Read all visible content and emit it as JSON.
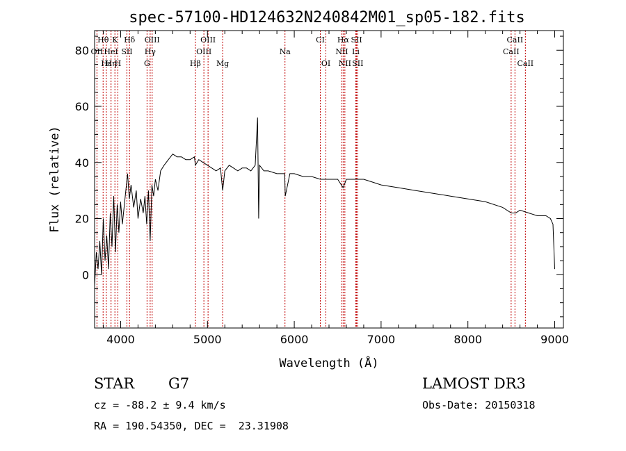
{
  "chart_data": {
    "type": "line",
    "title": "spec-57100-HD124632N240842M01_sp05-182.fits",
    "xlabel": "Wavelength (Å)",
    "ylabel": "Flux (relative)",
    "xlim": [
      3700,
      9100
    ],
    "ylim": [
      -19,
      87
    ],
    "x_ticks": [
      4000,
      5000,
      6000,
      7000,
      8000,
      9000
    ],
    "y_ticks": [
      0,
      20,
      40,
      60,
      80
    ],
    "series": [
      {
        "name": "flux",
        "x": [
          3700,
          3720,
          3740,
          3760,
          3780,
          3800,
          3820,
          3840,
          3860,
          3880,
          3900,
          3920,
          3940,
          3960,
          3980,
          4000,
          4020,
          4040,
          4060,
          4080,
          4100,
          4120,
          4150,
          4180,
          4200,
          4230,
          4260,
          4280,
          4300,
          4320,
          4340,
          4360,
          4380,
          4400,
          4430,
          4460,
          4500,
          4550,
          4600,
          4650,
          4700,
          4750,
          4800,
          4850,
          4861,
          4880,
          4900,
          4950,
          5000,
          5050,
          5100,
          5150,
          5175,
          5200,
          5250,
          5300,
          5350,
          5400,
          5450,
          5500,
          5550,
          5577,
          5590,
          5600,
          5650,
          5700,
          5800,
          5890,
          5896,
          5950,
          6000,
          6100,
          6200,
          6300,
          6400,
          6500,
          6563,
          6600,
          6700,
          6800,
          6900,
          7000,
          7200,
          7400,
          7600,
          7800,
          8000,
          8200,
          8400,
          8500,
          8550,
          8600,
          8700,
          8800,
          8900,
          8950,
          8980,
          9000
        ],
        "y": [
          -4,
          8,
          2,
          12,
          0,
          20,
          5,
          14,
          2,
          22,
          10,
          28,
          8,
          25,
          15,
          26,
          18,
          24,
          30,
          36,
          27,
          32,
          24,
          30,
          20,
          27,
          22,
          28,
          18,
          30,
          12,
          32,
          28,
          34,
          30,
          37,
          39,
          41,
          43,
          42,
          42,
          41,
          41,
          42,
          39,
          40,
          41,
          40,
          39,
          38,
          37,
          38,
          30,
          37,
          39,
          38,
          37,
          38,
          38,
          37,
          39,
          56,
          20,
          39,
          37,
          37,
          36,
          36,
          28,
          36,
          36,
          35,
          35,
          34,
          34,
          34,
          31,
          34,
          34,
          34,
          33,
          32,
          31,
          30,
          29,
          28,
          27,
          26,
          24,
          22,
          22,
          23,
          22,
          21,
          21,
          20,
          18,
          2
        ]
      }
    ],
    "spectral_lines": [
      {
        "label": "Hθ",
        "x": 3798,
        "row": 1
      },
      {
        "label": "K",
        "x": 3934,
        "row": 1
      },
      {
        "label": "Hδ",
        "x": 4102,
        "row": 1
      },
      {
        "label": "OIII",
        "x": 4363,
        "row": 1
      },
      {
        "label": "OIII",
        "x": 5007,
        "row": 1
      },
      {
        "label": "CI",
        "x": 6300,
        "row": 1
      },
      {
        "label": "Hα",
        "x": 6563,
        "row": 1
      },
      {
        "label": "SII",
        "x": 6717,
        "row": 1
      },
      {
        "label": "CaII",
        "x": 8542,
        "row": 1
      },
      {
        "label": "OII",
        "x": 3727,
        "row": 2
      },
      {
        "label": "HeI",
        "x": 3889,
        "row": 2
      },
      {
        "label": "SII",
        "x": 4072,
        "row": 2
      },
      {
        "label": "Hγ",
        "x": 4340,
        "row": 2
      },
      {
        "label": "OIII",
        "x": 4959,
        "row": 2
      },
      {
        "label": "Na",
        "x": 5893,
        "row": 2
      },
      {
        "label": "NII",
        "x": 6548,
        "row": 2
      },
      {
        "label": "Li",
        "x": 6708,
        "row": 2
      },
      {
        "label": "CaII",
        "x": 8498,
        "row": 2
      },
      {
        "label": "Hε",
        "x": 3835,
        "row": 3
      },
      {
        "label": "Hη",
        "x": 3889,
        "row": 3
      },
      {
        "label": "H",
        "x": 3968,
        "row": 3
      },
      {
        "label": "G",
        "x": 4304,
        "row": 3
      },
      {
        "label": "Hβ",
        "x": 4861,
        "row": 3
      },
      {
        "label": "Mg",
        "x": 5175,
        "row": 3
      },
      {
        "label": "OI",
        "x": 6364,
        "row": 3
      },
      {
        "label": "NII",
        "x": 6583,
        "row": 3
      },
      {
        "label": "SII",
        "x": 6731,
        "row": 3
      },
      {
        "label": "CaII",
        "x": 8662,
        "row": 3
      }
    ]
  },
  "info": {
    "object_class": "STAR",
    "subclass": "G7",
    "survey": "LAMOST DR3",
    "redshift": "cz = -88.2 ± 9.4 km/s",
    "obs_date": "Obs-Date: 20150318",
    "coords": "RA = 190.54350, DEC =  23.31908"
  },
  "colors": {
    "line_markers": "#c00000",
    "spectrum": "#000000"
  }
}
